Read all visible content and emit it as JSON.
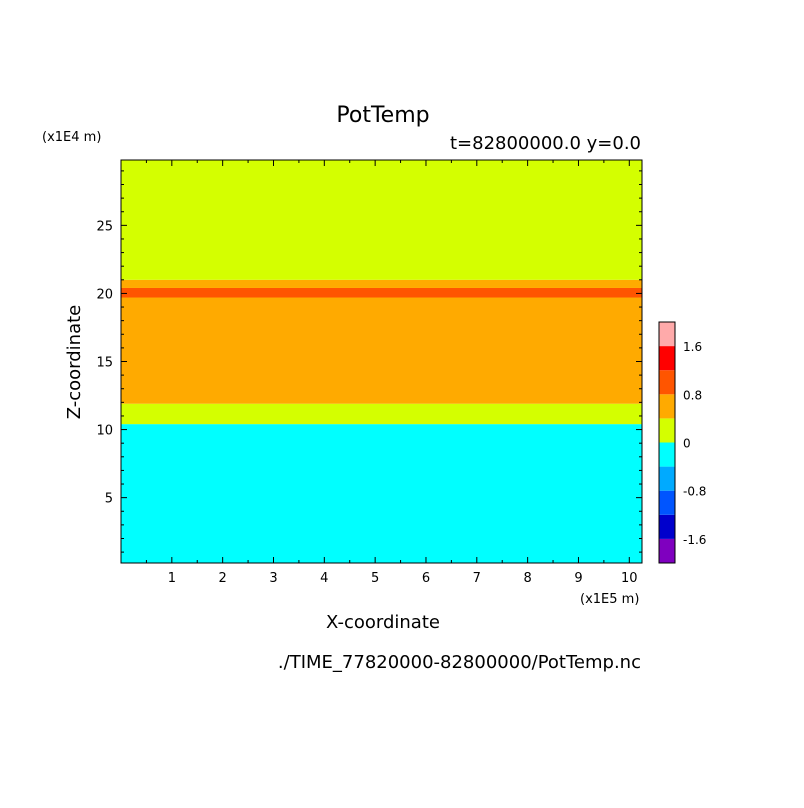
{
  "chart_data": {
    "type": "heatmap",
    "title": "PotTemp",
    "subtitle": "t=82800000.0 y=0.0",
    "xlabel": "X-coordinate",
    "ylabel": "Z-coordinate",
    "x_unit": "(x1E5 m)",
    "y_unit": "(x1E4 m)",
    "xlim": [
      0,
      10.25
    ],
    "ylim": [
      0.2,
      29.8
    ],
    "x_ticks": [
      "1",
      "2",
      "3",
      "4",
      "5",
      "6",
      "7",
      "8",
      "9",
      "10"
    ],
    "y_ticks": [
      "5",
      "10",
      "15",
      "20",
      "25"
    ],
    "bands": [
      {
        "z_min": 0.2,
        "z_max": 10.4,
        "level": "-0.4 to 0",
        "color": "#00ffff"
      },
      {
        "z_min": 10.4,
        "z_max": 11.9,
        "level": "0 to 0.4",
        "color": "#d4ff00"
      },
      {
        "z_min": 11.9,
        "z_max": 19.7,
        "level": "0.4 to 0.8",
        "color": "#ffaa00"
      },
      {
        "z_min": 19.7,
        "z_max": 20.4,
        "level": "0.8 to 1.2",
        "color": "#ff5500"
      },
      {
        "z_min": 20.4,
        "z_max": 21.0,
        "level": "0.4 to 0.8",
        "color": "#ffaa00"
      },
      {
        "z_min": 21.0,
        "z_max": 29.8,
        "level": "0 to 0.4",
        "color": "#d4ff00"
      }
    ],
    "colorbar": {
      "colors": [
        "#7f00bf",
        "#0000cc",
        "#0055ff",
        "#00aaff",
        "#00ffff",
        "#d4ff00",
        "#ffaa00",
        "#ff5500",
        "#ff0000",
        "#ffaaaa"
      ],
      "tick_labels": [
        "-1.6",
        "-0.8",
        "0",
        "0.8",
        "1.6"
      ],
      "tick_values": [
        -1.6,
        -0.8,
        0,
        0.8,
        1.6
      ],
      "range": [
        -2.0,
        2.0
      ]
    },
    "source_file": "./TIME_77820000-82800000/PotTemp.nc"
  }
}
